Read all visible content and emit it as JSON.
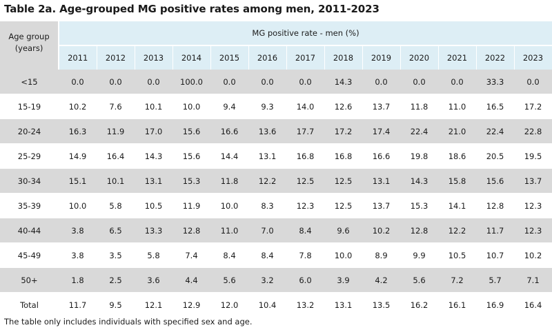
{
  "title": "Table 2a. Age-grouped MG positive rates among men, 2011-2023",
  "header": {
    "age_group_line1": "Age group",
    "age_group_line2": "(years)",
    "rate_label": "MG positive rate - men (%)",
    "years": [
      "2011",
      "2012",
      "2013",
      "2014",
      "2015",
      "2016",
      "2017",
      "2018",
      "2019",
      "2020",
      "2021",
      "2022",
      "2023"
    ]
  },
  "rows": [
    {
      "age": "<15",
      "values": [
        "0.0",
        "0.0",
        "0.0",
        "100.0",
        "0.0",
        "0.0",
        "0.0",
        "14.3",
        "0.0",
        "0.0",
        "0.0",
        "33.3",
        "0.0"
      ]
    },
    {
      "age": "15-19",
      "values": [
        "10.2",
        "7.6",
        "10.1",
        "10.0",
        "9.4",
        "9.3",
        "14.0",
        "12.6",
        "13.7",
        "11.8",
        "11.0",
        "16.5",
        "17.2"
      ]
    },
    {
      "age": "20-24",
      "values": [
        "16.3",
        "11.9",
        "17.0",
        "15.6",
        "16.6",
        "13.6",
        "17.7",
        "17.2",
        "17.4",
        "22.4",
        "21.0",
        "22.4",
        "22.8"
      ]
    },
    {
      "age": "25-29",
      "values": [
        "14.9",
        "16.4",
        "14.3",
        "15.6",
        "14.4",
        "13.1",
        "16.8",
        "16.8",
        "16.6",
        "19.8",
        "18.6",
        "20.5",
        "19.5"
      ]
    },
    {
      "age": "30-34",
      "values": [
        "15.1",
        "10.1",
        "13.1",
        "15.3",
        "11.8",
        "12.2",
        "12.5",
        "12.5",
        "13.1",
        "14.3",
        "15.8",
        "15.6",
        "13.7"
      ]
    },
    {
      "age": "35-39",
      "values": [
        "10.0",
        "5.8",
        "10.5",
        "11.9",
        "10.0",
        "8.3",
        "12.3",
        "12.5",
        "13.7",
        "15.3",
        "14.1",
        "12.8",
        "12.3"
      ]
    },
    {
      "age": "40-44",
      "values": [
        "3.8",
        "6.5",
        "13.3",
        "12.8",
        "11.0",
        "7.0",
        "8.4",
        "9.6",
        "10.2",
        "12.8",
        "12.2",
        "11.7",
        "12.3"
      ]
    },
    {
      "age": "45-49",
      "values": [
        "3.8",
        "3.5",
        "5.8",
        "7.4",
        "8.4",
        "8.4",
        "7.8",
        "10.0",
        "8.9",
        "9.9",
        "10.5",
        "10.7",
        "10.2"
      ]
    },
    {
      "age": "50+",
      "values": [
        "1.8",
        "2.5",
        "3.6",
        "4.4",
        "5.6",
        "3.2",
        "6.0",
        "3.9",
        "4.2",
        "5.6",
        "7.2",
        "5.7",
        "7.1"
      ]
    },
    {
      "age": "Total",
      "values": [
        "11.7",
        "9.5",
        "12.1",
        "12.9",
        "12.0",
        "10.4",
        "13.2",
        "13.1",
        "13.5",
        "16.2",
        "16.1",
        "16.9",
        "16.4"
      ]
    }
  ],
  "footnote": "The table only includes individuals with specified sex and age.",
  "colors": {
    "header_blue": "#ddeef5",
    "shade_gray": "#d9d9d9"
  }
}
